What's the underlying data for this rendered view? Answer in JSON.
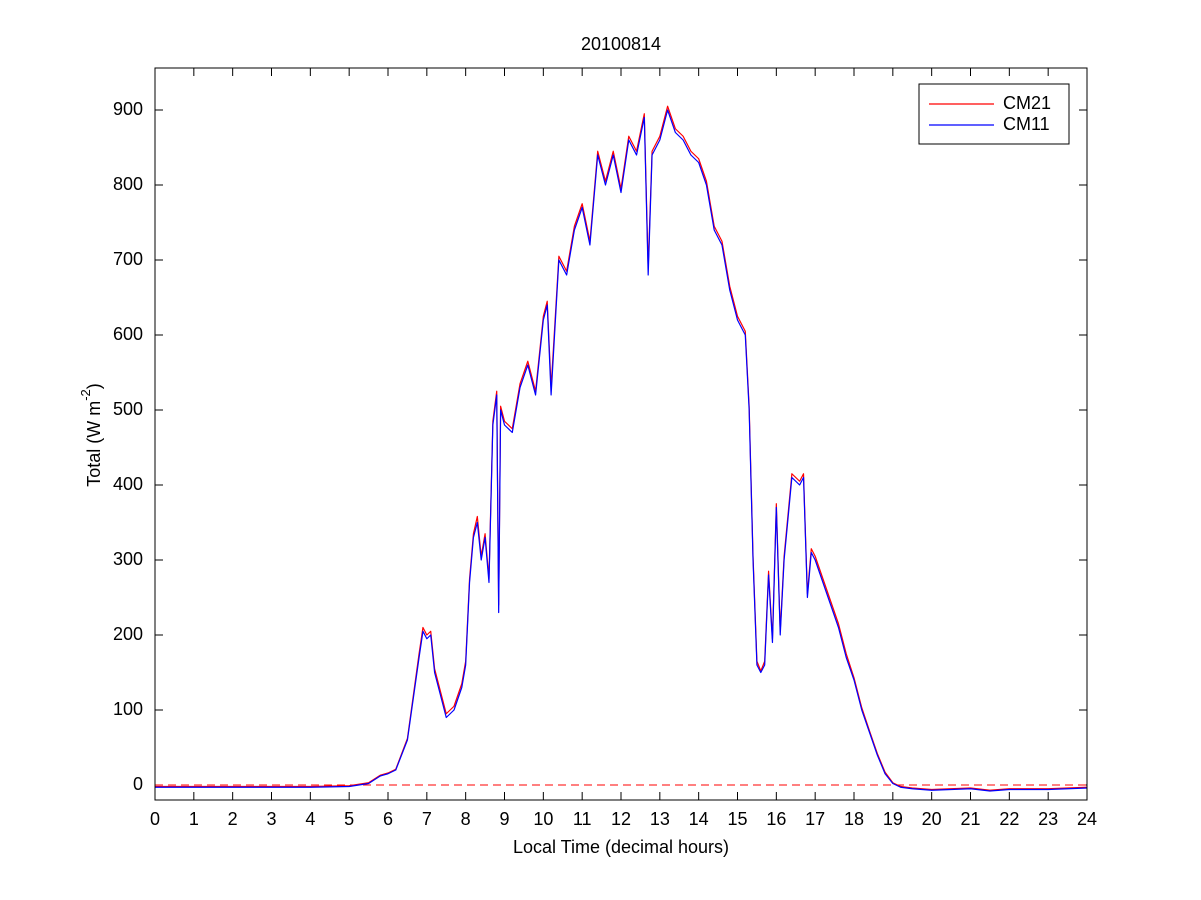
{
  "chart_data": {
    "type": "line",
    "title": "20100814",
    "xlabel": "Local Time (decimal hours)",
    "ylabel": {
      "text": "Total (W m",
      "superscript": "-2",
      "suffix": ")"
    },
    "x": [
      0,
      1,
      2,
      3,
      4,
      5,
      5.5,
      5.8,
      6,
      6.2,
      6.5,
      6.8,
      6.9,
      7,
      7.1,
      7.2,
      7.3,
      7.5,
      7.7,
      7.9,
      8,
      8.1,
      8.2,
      8.3,
      8.4,
      8.5,
      8.6,
      8.7,
      8.8,
      8.85,
      8.9,
      9,
      9.2,
      9.4,
      9.6,
      9.8,
      10,
      10.1,
      10.2,
      10.4,
      10.6,
      10.8,
      11,
      11.2,
      11.4,
      11.6,
      11.8,
      12,
      12.2,
      12.4,
      12.6,
      12.7,
      12.8,
      13,
      13.2,
      13.4,
      13.6,
      13.8,
      14,
      14.2,
      14.4,
      14.6,
      14.8,
      15,
      15.2,
      15.3,
      15.4,
      15.5,
      15.6,
      15.7,
      15.8,
      15.9,
      16,
      16.1,
      16.2,
      16.4,
      16.6,
      16.7,
      16.8,
      16.9,
      17,
      17.2,
      17.4,
      17.6,
      17.8,
      18,
      18.2,
      18.4,
      18.6,
      18.8,
      19,
      19.2,
      19.5,
      20,
      20.5,
      21,
      21.5,
      22,
      23,
      24
    ],
    "series": [
      {
        "name": "CM21",
        "color": "#ff0000",
        "values": [
          -2,
          -2,
          -2,
          -2,
          -2,
          -1,
          3,
          13,
          16,
          21,
          62,
          175,
          210,
          200,
          205,
          155,
          135,
          95,
          105,
          135,
          165,
          275,
          335,
          358,
          305,
          335,
          275,
          485,
          525,
          240,
          505,
          485,
          475,
          535,
          565,
          525,
          625,
          645,
          530,
          705,
          685,
          745,
          775,
          725,
          845,
          805,
          845,
          795,
          865,
          845,
          895,
          690,
          845,
          865,
          905,
          875,
          865,
          845,
          835,
          805,
          745,
          725,
          665,
          625,
          605,
          505,
          305,
          165,
          152,
          165,
          285,
          195,
          375,
          205,
          305,
          415,
          405,
          415,
          255,
          315,
          305,
          275,
          245,
          215,
          175,
          143,
          103,
          72,
          42,
          17,
          3,
          -2,
          -4,
          -6,
          -5,
          -4,
          -7,
          -5,
          -5,
          -3
        ]
      },
      {
        "name": "CM11",
        "color": "#0000ff",
        "values": [
          -3,
          -3,
          -3,
          -3,
          -3,
          -2,
          2,
          12,
          15,
          20,
          60,
          170,
          205,
          195,
          200,
          150,
          130,
          90,
          100,
          130,
          160,
          270,
          330,
          350,
          300,
          330,
          270,
          480,
          520,
          230,
          500,
          480,
          470,
          530,
          560,
          520,
          620,
          640,
          520,
          700,
          680,
          740,
          770,
          720,
          840,
          800,
          840,
          790,
          860,
          840,
          890,
          680,
          840,
          860,
          900,
          870,
          860,
          840,
          830,
          800,
          740,
          720,
          660,
          620,
          600,
          500,
          300,
          160,
          150,
          160,
          280,
          190,
          370,
          200,
          300,
          410,
          400,
          410,
          250,
          310,
          300,
          270,
          240,
          210,
          170,
          140,
          100,
          70,
          40,
          15,
          2,
          -3,
          -5,
          -7,
          -6,
          -5,
          -8,
          -6,
          -6,
          -4
        ]
      }
    ],
    "hlines": [
      {
        "y": 0,
        "color": "#ff0000",
        "dash": true
      }
    ],
    "xlim": [
      0,
      24
    ],
    "xticks": [
      0,
      1,
      2,
      3,
      4,
      5,
      6,
      7,
      8,
      9,
      10,
      11,
      12,
      13,
      14,
      15,
      16,
      17,
      18,
      19,
      20,
      21,
      22,
      23,
      24
    ],
    "ylim": [
      -20,
      956
    ],
    "yticks": [
      0,
      100,
      200,
      300,
      400,
      500,
      600,
      700,
      800,
      900
    ],
    "legend": "northeast",
    "grid": false
  }
}
